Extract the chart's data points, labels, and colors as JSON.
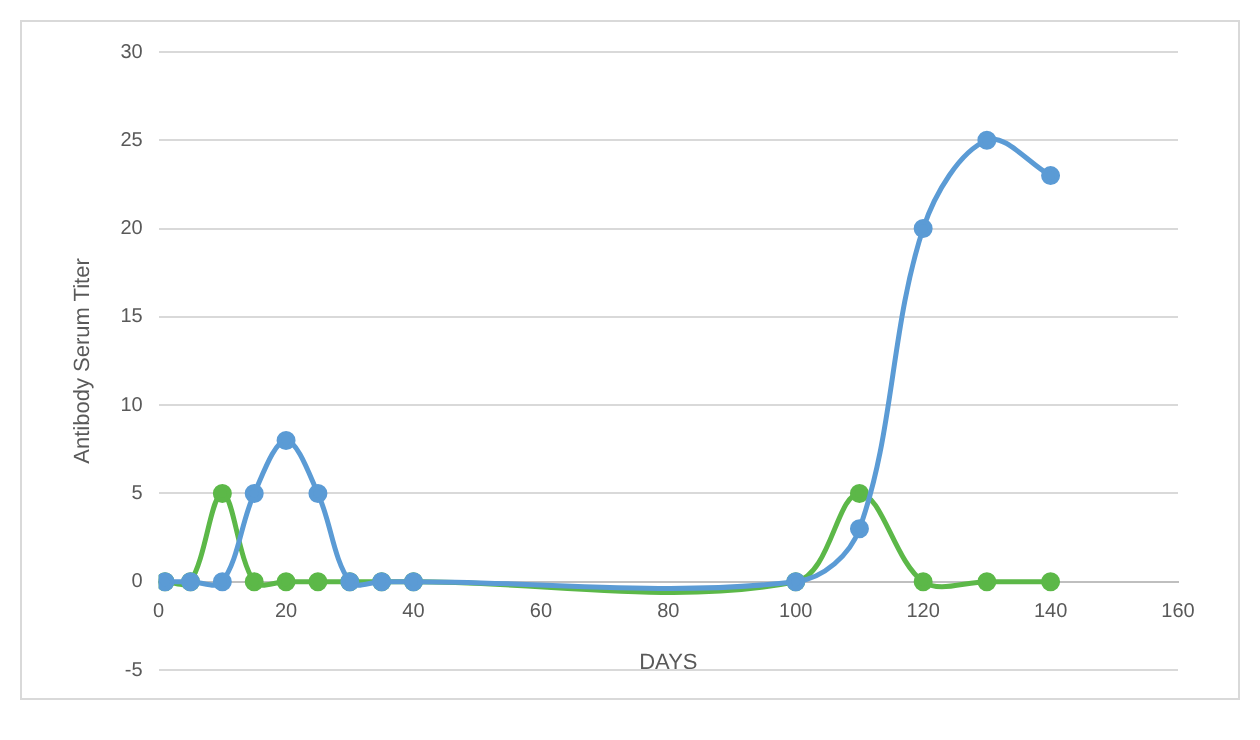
{
  "chart_data": {
    "type": "line",
    "xlabel": "DAYS",
    "ylabel": "Antibody Serum Titer",
    "x": [
      1,
      5,
      10,
      15,
      20,
      25,
      30,
      35,
      40,
      100,
      110,
      120,
      130,
      140
    ],
    "series": [
      {
        "color": "#5b9bd5",
        "values": [
          0,
          0,
          0,
          5,
          8,
          5,
          0,
          0,
          0,
          0,
          3,
          20,
          25,
          23
        ]
      },
      {
        "color": "#5cb848",
        "values": [
          0,
          0,
          5,
          0,
          0,
          0,
          0,
          0,
          0,
          0,
          5,
          0,
          0,
          0
        ]
      }
    ],
    "xlim": [
      0,
      160
    ],
    "xticks": [
      0,
      20,
      40,
      60,
      80,
      100,
      120,
      140,
      160
    ],
    "ylim": [
      -5,
      30
    ],
    "yticks": [
      -5,
      0,
      5,
      10,
      15,
      20,
      25,
      30
    ],
    "grid": "y",
    "legend": false,
    "marker": "circle",
    "line_style": "solid"
  }
}
